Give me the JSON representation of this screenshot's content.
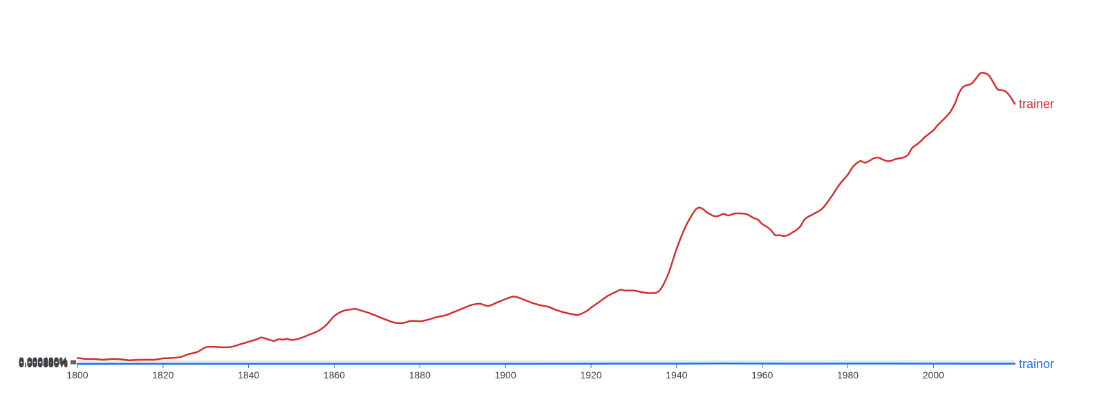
{
  "chart_data": {
    "type": "line",
    "title": "",
    "xlabel": "",
    "ylabel": "",
    "xlim": [
      1800,
      2019
    ],
    "ylim": [
      0,
      0.0004
    ],
    "grid": true,
    "legend": "inline-right-end",
    "x_ticks": [
      "1800",
      "1820",
      "1840",
      "1860",
      "1880",
      "1900",
      "1920",
      "1940",
      "1960",
      "1980",
      "2000"
    ],
    "y_ticks": [
      "0.000400%",
      "0.000350%",
      "0.000300%",
      "0.000250%",
      "0.000200%",
      "0.000150%",
      "0.000100%",
      "0.000050%",
      "0.000000%"
    ],
    "series": [
      {
        "name": "trainer",
        "color": "#d32f2f",
        "points": [
          [
            1800,
            7e-06
          ],
          [
            1802,
            5.8e-06
          ],
          [
            1804,
            5.8e-06
          ],
          [
            1806,
            5e-06
          ],
          [
            1808,
            5.8e-06
          ],
          [
            1810,
            5.5e-06
          ],
          [
            1812,
            4.3e-06
          ],
          [
            1814,
            4.8e-06
          ],
          [
            1816,
            5e-06
          ],
          [
            1818,
            5e-06
          ],
          [
            1820,
            6.5e-06
          ],
          [
            1822,
            7e-06
          ],
          [
            1824,
            8e-06
          ],
          [
            1826,
            1.15e-05
          ],
          [
            1828,
            1.4e-05
          ],
          [
            1830,
            1.95e-05
          ],
          [
            1832,
            2e-05
          ],
          [
            1834,
            1.95e-05
          ],
          [
            1836,
            2e-05
          ],
          [
            1838,
            2.3e-05
          ],
          [
            1840,
            2.6e-05
          ],
          [
            1842,
            2.9e-05
          ],
          [
            1843,
            3.1e-05
          ],
          [
            1845,
            2.8e-05
          ],
          [
            1846,
            2.7e-05
          ],
          [
            1847,
            2.9e-05
          ],
          [
            1848,
            2.85e-05
          ],
          [
            1849,
            2.95e-05
          ],
          [
            1850,
            2.8e-05
          ],
          [
            1852,
            3e-05
          ],
          [
            1854,
            3.4e-05
          ],
          [
            1856,
            3.8e-05
          ],
          [
            1858,
            4.5e-05
          ],
          [
            1860,
            5.6e-05
          ],
          [
            1862,
            6.2e-05
          ],
          [
            1864,
            6.4e-05
          ],
          [
            1865,
            6.45e-05
          ],
          [
            1866,
            6.3e-05
          ],
          [
            1868,
            6e-05
          ],
          [
            1870,
            5.6e-05
          ],
          [
            1872,
            5.2e-05
          ],
          [
            1874,
            4.85e-05
          ],
          [
            1876,
            4.8e-05
          ],
          [
            1878,
            5.05e-05
          ],
          [
            1880,
            5e-05
          ],
          [
            1882,
            5.2e-05
          ],
          [
            1884,
            5.5e-05
          ],
          [
            1886,
            5.7e-05
          ],
          [
            1888,
            6.1e-05
          ],
          [
            1890,
            6.5e-05
          ],
          [
            1892,
            6.9e-05
          ],
          [
            1894,
            7.05e-05
          ],
          [
            1896,
            6.8e-05
          ],
          [
            1898,
            7.2e-05
          ],
          [
            1900,
            7.6e-05
          ],
          [
            1902,
            7.9e-05
          ],
          [
            1904,
            7.6e-05
          ],
          [
            1906,
            7.2e-05
          ],
          [
            1908,
            6.9e-05
          ],
          [
            1910,
            6.7e-05
          ],
          [
            1912,
            6.3e-05
          ],
          [
            1914,
            6e-05
          ],
          [
            1916,
            5.8e-05
          ],
          [
            1917,
            5.75e-05
          ],
          [
            1919,
            6.2e-05
          ],
          [
            1920,
            6.6e-05
          ],
          [
            1922,
            7.3e-05
          ],
          [
            1924,
            8e-05
          ],
          [
            1926,
            8.5e-05
          ],
          [
            1927,
            8.7e-05
          ],
          [
            1928,
            8.6e-05
          ],
          [
            1930,
            8.6e-05
          ],
          [
            1932,
            8.4e-05
          ],
          [
            1934,
            8.3e-05
          ],
          [
            1936,
            8.6e-05
          ],
          [
            1938,
            0.000105
          ],
          [
            1940,
            0.000135
          ],
          [
            1942,
            0.00016
          ],
          [
            1944,
            0.000178
          ],
          [
            1945,
            0.000183
          ],
          [
            1946,
            0.000182
          ],
          [
            1947,
            0.000178
          ],
          [
            1948,
            0.000175
          ],
          [
            1949,
            0.000173
          ],
          [
            1950,
            0.000174
          ],
          [
            1951,
            0.000176
          ],
          [
            1952,
            0.000174
          ],
          [
            1953,
            0.0001755
          ],
          [
            1954,
            0.0001765
          ],
          [
            1956,
            0.000176
          ],
          [
            1957,
            0.000174
          ],
          [
            1958,
            0.000171
          ],
          [
            1959,
            0.000169
          ],
          [
            1960,
            0.000164
          ],
          [
            1961,
            0.000161
          ],
          [
            1962,
            0.000157
          ],
          [
            1963,
            0.000151
          ],
          [
            1964,
            0.000151
          ],
          [
            1965,
            0.00015
          ],
          [
            1966,
            0.000151
          ],
          [
            1967,
            0.000154
          ],
          [
            1968,
            0.000157
          ],
          [
            1969,
            0.000162
          ],
          [
            1970,
            0.00017
          ],
          [
            1972,
            0.000176
          ],
          [
            1974,
            0.000182
          ],
          [
            1976,
            0.000195
          ],
          [
            1978,
            0.00021
          ],
          [
            1980,
            0.000222
          ],
          [
            1981,
            0.00023
          ],
          [
            1982,
            0.000235
          ],
          [
            1983,
            0.000238
          ],
          [
            1984,
            0.000236
          ],
          [
            1985,
            0.000238
          ],
          [
            1986,
            0.000241
          ],
          [
            1987,
            0.000242
          ],
          [
            1988,
            0.00024
          ],
          [
            1989,
            0.000238
          ],
          [
            1990,
            0.000238
          ],
          [
            1991,
            0.00024
          ],
          [
            1992,
            0.000241
          ],
          [
            1993,
            0.000242
          ],
          [
            1994,
            0.000245
          ],
          [
            1995,
            0.000253
          ],
          [
            1996,
            0.000257
          ],
          [
            1997,
            0.000261
          ],
          [
            1998,
            0.000266
          ],
          [
            1999,
            0.00027
          ],
          [
            2000,
            0.000274
          ],
          [
            2001,
            0.00028
          ],
          [
            2002,
            0.000285
          ],
          [
            2003,
            0.00029
          ],
          [
            2004,
            0.000296
          ],
          [
            2005,
            0.000305
          ],
          [
            2006,
            0.000318
          ],
          [
            2007,
            0.000325
          ],
          [
            2008,
            0.000327
          ],
          [
            2009,
            0.000329
          ],
          [
            2010,
            0.000335
          ],
          [
            2011,
            0.000341
          ],
          [
            2012,
            0.000341
          ],
          [
            2013,
            0.000338
          ],
          [
            2014,
            0.00033
          ],
          [
            2015,
            0.000322
          ],
          [
            2016,
            0.000321
          ],
          [
            2017,
            0.000319
          ],
          [
            2018,
            0.000313
          ],
          [
            2019,
            0.000305
          ]
        ]
      },
      {
        "name": "trainor",
        "color": "#1a73e8",
        "points": [
          [
            1800,
            0.0
          ],
          [
            1820,
            1e-07
          ],
          [
            1840,
            1e-07
          ],
          [
            1860,
            1e-07
          ],
          [
            1880,
            1e-07
          ],
          [
            1900,
            1e-07
          ],
          [
            1920,
            2e-07
          ],
          [
            1930,
            3e-07
          ],
          [
            1940,
            3e-07
          ],
          [
            1950,
            5e-07
          ],
          [
            1960,
            4e-07
          ],
          [
            1970,
            3e-07
          ],
          [
            1980,
            4e-07
          ],
          [
            1990,
            4e-07
          ],
          [
            2000,
            3e-07
          ],
          [
            2010,
            2e-07
          ],
          [
            2019,
            2e-07
          ]
        ]
      }
    ]
  }
}
